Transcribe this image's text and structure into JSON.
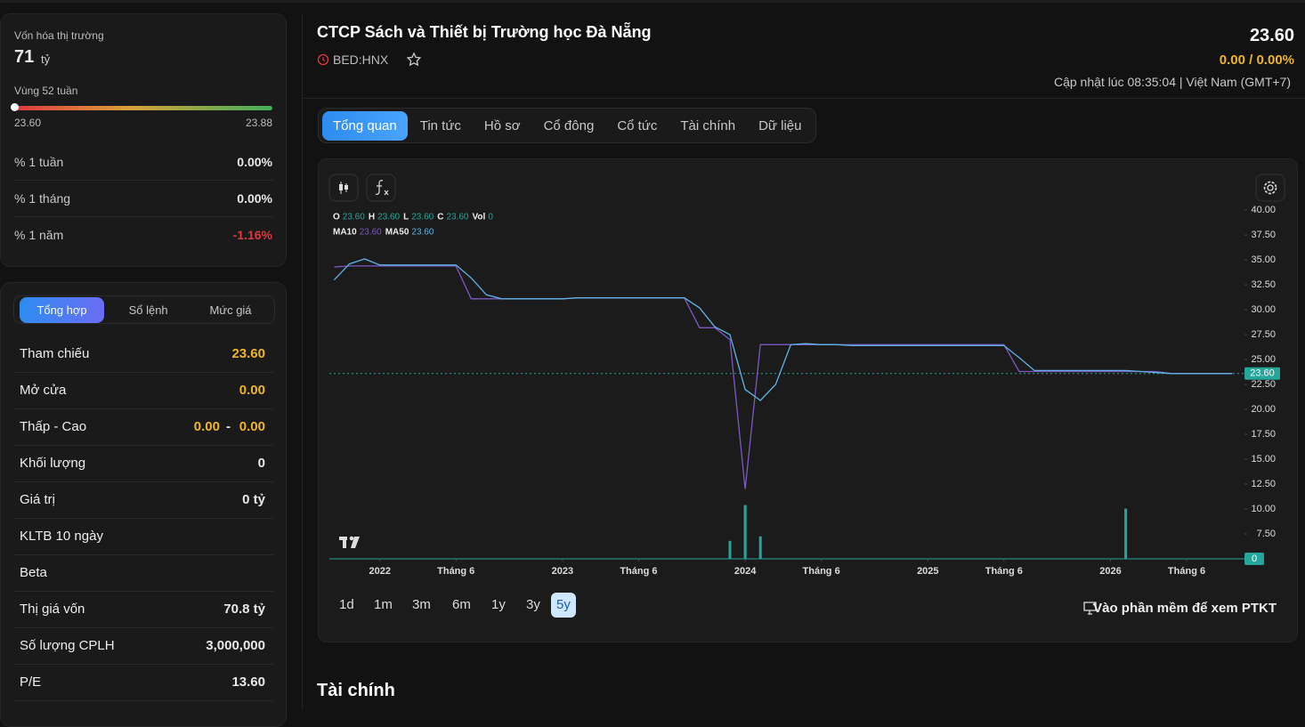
{
  "sidebar": {
    "market_cap": {
      "label": "Vốn hóa thị trường",
      "value": "71",
      "unit": "tỷ"
    },
    "range_52w": {
      "label": "Vùng 52 tuần",
      "low": "23.60",
      "high": "23.88"
    },
    "performance": [
      {
        "label": "% 1 tuần",
        "value": "0.00%"
      },
      {
        "label": "% 1 tháng",
        "value": "0.00%"
      },
      {
        "label": "% 1 năm",
        "value": "-1.16%"
      }
    ]
  },
  "trade_panel": {
    "tabs": [
      "Tổng hợp",
      "Sổ lệnh",
      "Mức giá"
    ],
    "active_tab": 0,
    "rows": [
      {
        "label": "Tham chiếu",
        "value": "23.60"
      },
      {
        "label": "Mở cửa",
        "value": "0.00"
      },
      {
        "label": "Thấp - Cao",
        "low": "0.00",
        "separator": "-",
        "high": "0.00"
      },
      {
        "label": "Khối lượng",
        "value": "0"
      },
      {
        "label": "Giá trị",
        "value": "0 tỷ"
      },
      {
        "label": "KLTB 10 ngày"
      },
      {
        "label": "Beta"
      },
      {
        "label": "Thị giá vốn",
        "value": "70.8 tỷ"
      },
      {
        "label": "Số lượng CPLH",
        "value": "3,000,000"
      },
      {
        "label": "P/E",
        "value": "13.60"
      }
    ]
  },
  "header": {
    "title": "CTCP Sách và Thiết bị Trường học Đà Nẵng",
    "ticker": "BED:HNX",
    "price": "23.60",
    "change": "0.00 / 0.00%",
    "updated": "Cập nhật lúc 08:35:04 | Việt Nam (GMT+7)"
  },
  "nav": {
    "tabs": [
      "Tổng quan",
      "Tin tức",
      "Hồ sơ",
      "Cổ đông",
      "Cổ tức",
      "Tài chính",
      "Dữ liệu"
    ],
    "active_tab": 0
  },
  "chart_data": {
    "type": "line",
    "x": [
      "2021-10",
      "2021-11",
      "2021-12",
      "2022-01",
      "2022-02",
      "2022-03",
      "2022-04",
      "2022-05",
      "2022-06",
      "2022-07",
      "2022-08",
      "2022-09",
      "2022-10",
      "2022-11",
      "2022-12",
      "2023-01",
      "2023-02",
      "2023-03",
      "2023-04",
      "2023-05",
      "2023-06",
      "2023-07",
      "2023-08",
      "2023-09",
      "2023-10",
      "2023-11",
      "2023-12",
      "2024-01",
      "2024-02",
      "2024-03",
      "2024-04",
      "2024-05",
      "2024-06",
      "2024-07",
      "2024-08",
      "2024-09",
      "2024-10",
      "2024-11",
      "2024-12",
      "2025-01",
      "2025-02",
      "2025-03",
      "2025-04",
      "2025-05",
      "2025-06",
      "2025-07",
      "2025-08",
      "2025-09",
      "2025-10",
      "2025-11",
      "2025-12",
      "2026-01",
      "2026-02",
      "2026-03",
      "2026-04",
      "2026-05",
      "2026-06",
      "2026-07",
      "2026-08",
      "2026-09"
    ],
    "ohlc": [
      {
        "label": "O",
        "value": "23.60"
      },
      {
        "label": "H",
        "value": "23.60"
      },
      {
        "label": "L",
        "value": "23.60"
      },
      {
        "label": "C",
        "value": "23.60"
      }
    ],
    "series": [
      {
        "name": "MA10",
        "color": "#7e57c2",
        "legend_value": "23.60",
        "values": [
          34.3,
          34.4,
          34.4,
          34.4,
          34.4,
          34.4,
          34.4,
          34.4,
          34.4,
          31.1,
          31.1,
          31.1,
          31.1,
          31.1,
          31.1,
          31.1,
          31.2,
          31.2,
          31.2,
          31.2,
          31.2,
          31.2,
          31.2,
          31.2,
          28.2,
          28.2,
          27,
          12,
          26.5,
          26.5,
          26.5,
          26.5,
          26.5,
          26.5,
          26.5,
          26.5,
          26.5,
          26.5,
          26.5,
          26.5,
          26.5,
          26.5,
          26.5,
          26.5,
          26.5,
          23.8,
          23.8,
          23.8,
          23.8,
          23.8,
          23.8,
          23.8,
          23.8,
          23.8,
          23.8,
          23.6,
          23.6,
          23.6,
          23.6,
          23.6
        ]
      },
      {
        "name": "MA50",
        "color": "#5fb3e6",
        "legend_value": "23.60",
        "values": [
          33,
          34.6,
          35.1,
          34.5,
          34.5,
          34.5,
          34.5,
          34.5,
          34.5,
          33.2,
          31.5,
          31.1,
          31.1,
          31.1,
          31.1,
          31.1,
          31.2,
          31.2,
          31.2,
          31.2,
          31.2,
          31.2,
          31.2,
          31.2,
          30.2,
          28.3,
          27.5,
          22,
          20.9,
          22.5,
          26.5,
          26.6,
          26.5,
          26.5,
          26.4,
          26.4,
          26.4,
          26.4,
          26.4,
          26.4,
          26.4,
          26.4,
          26.4,
          26.4,
          26.4,
          25.2,
          23.9,
          23.9,
          23.9,
          23.9,
          23.9,
          23.9,
          23.9,
          23.8,
          23.7,
          23.6,
          23.6,
          23.6,
          23.6,
          23.6
        ]
      },
      {
        "name": "Vol",
        "type": "bar",
        "axis": "y2",
        "color": "#26a69a",
        "legend_value": "0",
        "values": [
          null,
          null,
          null,
          null,
          null,
          null,
          null,
          null,
          null,
          null,
          null,
          null,
          null,
          null,
          null,
          null,
          null,
          null,
          null,
          null,
          null,
          null,
          null,
          null,
          null,
          null,
          2,
          6,
          2.5,
          null,
          null,
          null,
          null,
          null,
          null,
          null,
          null,
          null,
          null,
          null,
          null,
          null,
          null,
          null,
          null,
          null,
          null,
          null,
          null,
          null,
          null,
          null,
          5.6,
          null,
          null,
          null,
          null,
          null,
          null,
          null
        ]
      }
    ],
    "ylim": [
      5,
      41
    ],
    "yticks": [
      {
        "value": 7.5,
        "label": "7.50"
      },
      {
        "value": 10,
        "label": "10.00"
      },
      {
        "value": 12.5,
        "label": "12.50"
      },
      {
        "value": 15,
        "label": "15.00"
      },
      {
        "value": 17.5,
        "label": "17.50"
      },
      {
        "value": 20,
        "label": "20.00"
      },
      {
        "value": 22.5,
        "label": "22.50"
      },
      {
        "value": 25,
        "label": "25.00"
      },
      {
        "value": 27.5,
        "label": "27.50"
      },
      {
        "value": 30,
        "label": "30.00"
      },
      {
        "value": 32.5,
        "label": "32.50"
      },
      {
        "value": 35,
        "label": "35.00"
      },
      {
        "value": 37.5,
        "label": "37.50"
      },
      {
        "value": 40,
        "label": "40.00"
      }
    ],
    "y2lim": [
      0,
      40
    ],
    "xticks": [
      {
        "value": "2022-01",
        "label": "2022"
      },
      {
        "value": "2022-06",
        "label": "Tháng 6"
      },
      {
        "value": "2023-01",
        "label": "2023"
      },
      {
        "value": "2023-06",
        "label": "Tháng 6"
      },
      {
        "value": "2024-01",
        "label": "2024"
      },
      {
        "value": "2024-06",
        "label": "Tháng 6"
      },
      {
        "value": "2025-01",
        "label": "2025"
      },
      {
        "value": "2025-06",
        "label": "Tháng 6"
      },
      {
        "value": "2026-01",
        "label": "2026"
      },
      {
        "value": "2026-06",
        "label": "Tháng 6"
      }
    ],
    "last_price": {
      "value": 23.6,
      "label": "23.60"
    },
    "last_volume": {
      "value": 0,
      "label": "0"
    }
  },
  "chart_controls": {
    "ranges": [
      "1d",
      "1m",
      "3m",
      "6m",
      "1y",
      "3y",
      "5y"
    ],
    "active_range": 6,
    "link": "Vào phần mềm để xem PTKT"
  },
  "section": {
    "title": "Tài chính"
  }
}
